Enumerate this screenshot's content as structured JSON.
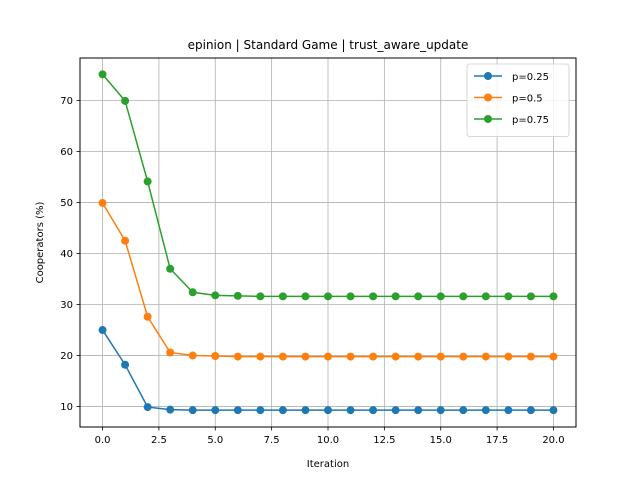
{
  "chart_data": {
    "type": "line",
    "title": "epinion | Standard Game | trust_aware_update",
    "xlabel": "Iteration",
    "ylabel": "Cooperators (%)",
    "xlim": [
      -1.0,
      21.0
    ],
    "ylim": [
      6.0,
      78.3
    ],
    "xticks": [
      0.0,
      2.5,
      5.0,
      7.5,
      10.0,
      12.5,
      15.0,
      17.5,
      20.0
    ],
    "xtick_labels": [
      "0.0",
      "2.5",
      "5.0",
      "7.5",
      "10.0",
      "12.5",
      "15.0",
      "17.5",
      "20.0"
    ],
    "yticks": [
      10,
      20,
      30,
      40,
      50,
      60,
      70
    ],
    "ytick_labels": [
      "10",
      "20",
      "30",
      "40",
      "50",
      "60",
      "70"
    ],
    "grid": true,
    "legend_position": "top-right",
    "x": [
      0,
      1,
      2,
      3,
      4,
      5,
      6,
      7,
      8,
      9,
      10,
      11,
      12,
      13,
      14,
      15,
      16,
      17,
      18,
      19,
      20
    ],
    "series": [
      {
        "name": "p=0.25",
        "color": "#1f77b4",
        "values": [
          25.0,
          18.2,
          9.9,
          9.4,
          9.3,
          9.3,
          9.3,
          9.3,
          9.3,
          9.3,
          9.3,
          9.3,
          9.3,
          9.3,
          9.3,
          9.3,
          9.3,
          9.3,
          9.3,
          9.3,
          9.3
        ]
      },
      {
        "name": "p=0.5",
        "color": "#ff7f0e",
        "values": [
          49.9,
          42.5,
          27.6,
          20.6,
          20.0,
          19.9,
          19.8,
          19.8,
          19.8,
          19.8,
          19.8,
          19.8,
          19.8,
          19.8,
          19.8,
          19.8,
          19.8,
          19.8,
          19.8,
          19.8,
          19.8
        ]
      },
      {
        "name": "p=0.75",
        "color": "#2ca02c",
        "values": [
          75.1,
          69.9,
          54.1,
          37.0,
          32.4,
          31.8,
          31.7,
          31.6,
          31.6,
          31.6,
          31.6,
          31.6,
          31.6,
          31.6,
          31.6,
          31.6,
          31.6,
          31.6,
          31.6,
          31.6,
          31.6
        ]
      }
    ]
  }
}
